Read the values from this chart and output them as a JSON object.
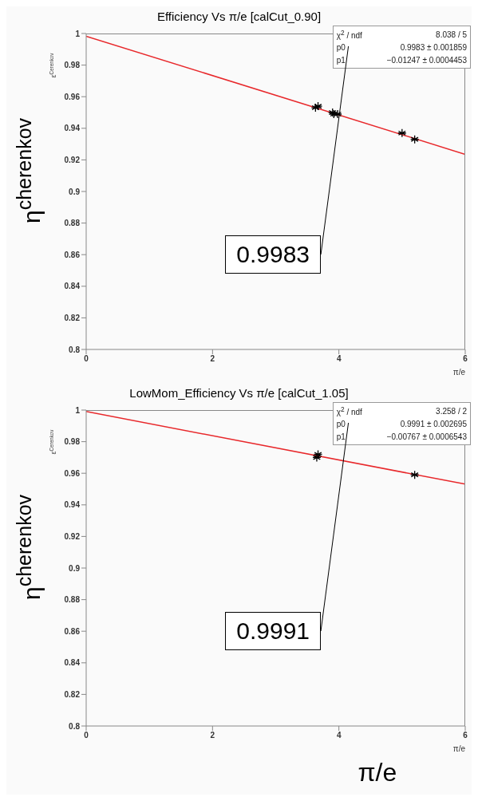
{
  "chart_data": [
    {
      "type": "scatter",
      "title": "Efficiency Vs π/e [calCut_0.90]",
      "xlabel": "π/e",
      "ylabel": "ε$^{Cerenkov}$",
      "xlim": [
        0,
        6
      ],
      "ylim": [
        0.8,
        1
      ],
      "xticks": [
        0,
        2,
        4,
        6
      ],
      "yticks": [
        0.8,
        0.82,
        0.84,
        0.86,
        0.88,
        0.9,
        0.92,
        0.94,
        0.96,
        0.98,
        1
      ],
      "grid": false,
      "legend": false,
      "marker": "cross",
      "annotations": [
        "χ$^{2}$ / ndf",
        "8.038 / 5",
        "p0",
        "0.9983 ± 0.001859",
        "p1",
        "−0.01247 ± 0.0004453",
        "0.9983",
        "η$^{cherenkov}$"
      ],
      "series": [
        {
          "color": "#000000",
          "x": [
            3.63,
            3.67,
            3.9,
            3.92,
            3.98,
            5.0,
            5.2
          ],
          "values": [
            0.953,
            0.954,
            0.95,
            0.949,
            0.949,
            0.937,
            0.933
          ]
        },
        {
          "type": "line",
          "marker": "none",
          "color": "#e8282b",
          "x": [
            0,
            6
          ],
          "values": [
            0.9983,
            0.9235
          ]
        }
      ]
    },
    {
      "type": "scatter",
      "title": "LowMom_Efficiency Vs π/e [calCut_1.05]",
      "xlabel": "π/e",
      "ylabel": "ε$^{Cerenkov}$",
      "xlim": [
        0,
        6
      ],
      "ylim": [
        0.8,
        1
      ],
      "xticks": [
        0,
        2,
        4,
        6
      ],
      "yticks": [
        0.8,
        0.82,
        0.84,
        0.86,
        0.88,
        0.9,
        0.92,
        0.94,
        0.96,
        0.98,
        1
      ],
      "grid": false,
      "legend": false,
      "marker": "cross",
      "annotations": [
        "χ$^{2}$ / ndf",
        "3.258 / 2",
        "p0",
        "0.9991 ± 0.002695",
        "p1",
        "−0.00767 ± 0.0006543",
        "0.9991",
        "η$^{cherenkov}$",
        "π/e"
      ],
      "series": [
        {
          "color": "#000000",
          "x": [
            3.65,
            3.67,
            5.2
          ],
          "values": [
            0.97,
            0.972,
            0.959
          ]
        },
        {
          "type": "line",
          "marker": "none",
          "color": "#e8282b",
          "x": [
            0,
            6
          ],
          "values": [
            0.9991,
            0.9531
          ]
        }
      ]
    }
  ]
}
